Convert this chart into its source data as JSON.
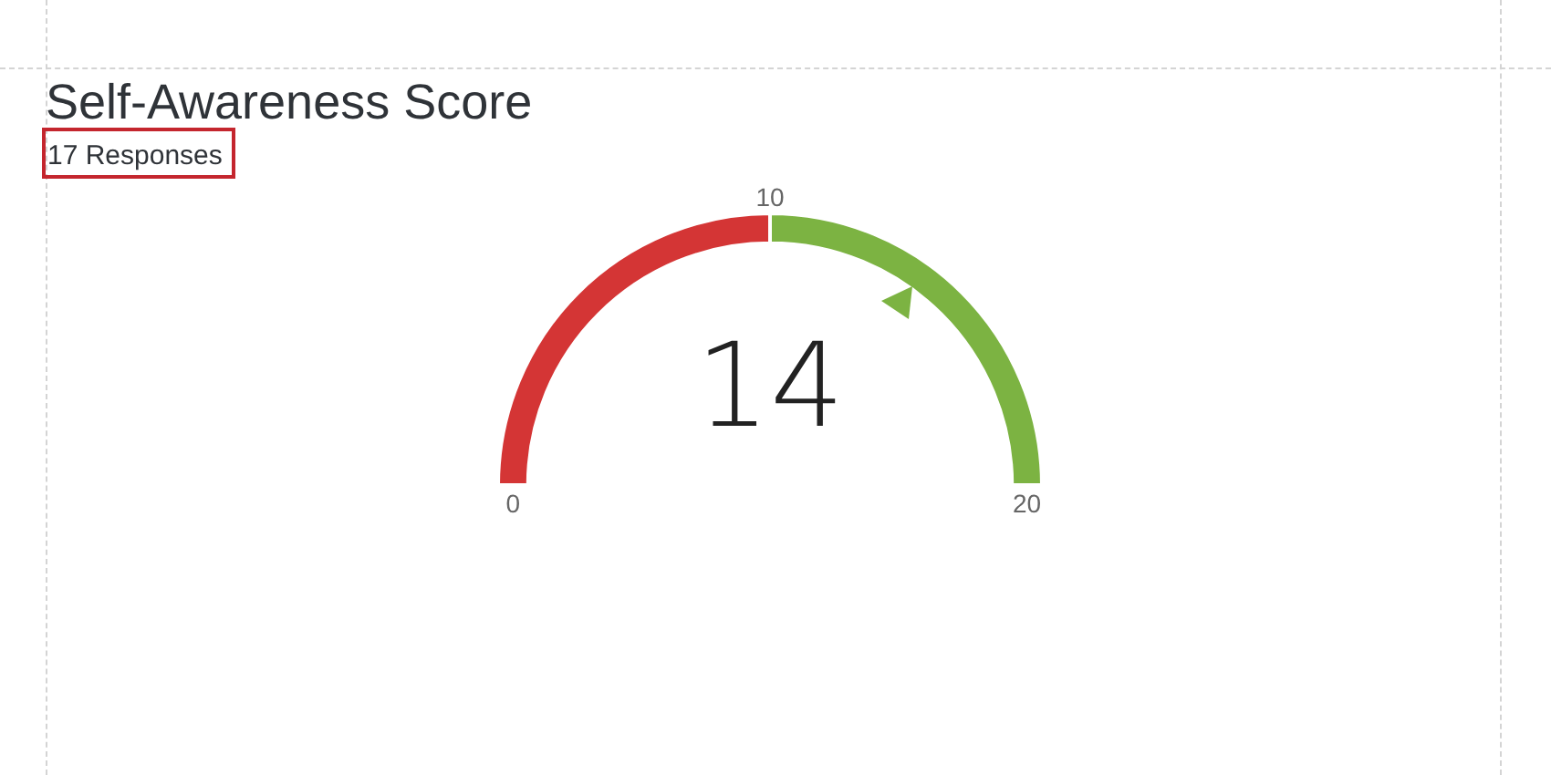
{
  "chart_data": {
    "type": "donut",
    "title": "Self-Awareness Score",
    "subtitle": "17 Responses",
    "categories": [
      null,
      null
    ],
    "values": [
      50,
      50
    ],
    "colors": [
      "#d43535",
      "#7cb342"
    ],
    "annotations": [
      "0",
      "10",
      "20",
      "14"
    ]
  }
}
